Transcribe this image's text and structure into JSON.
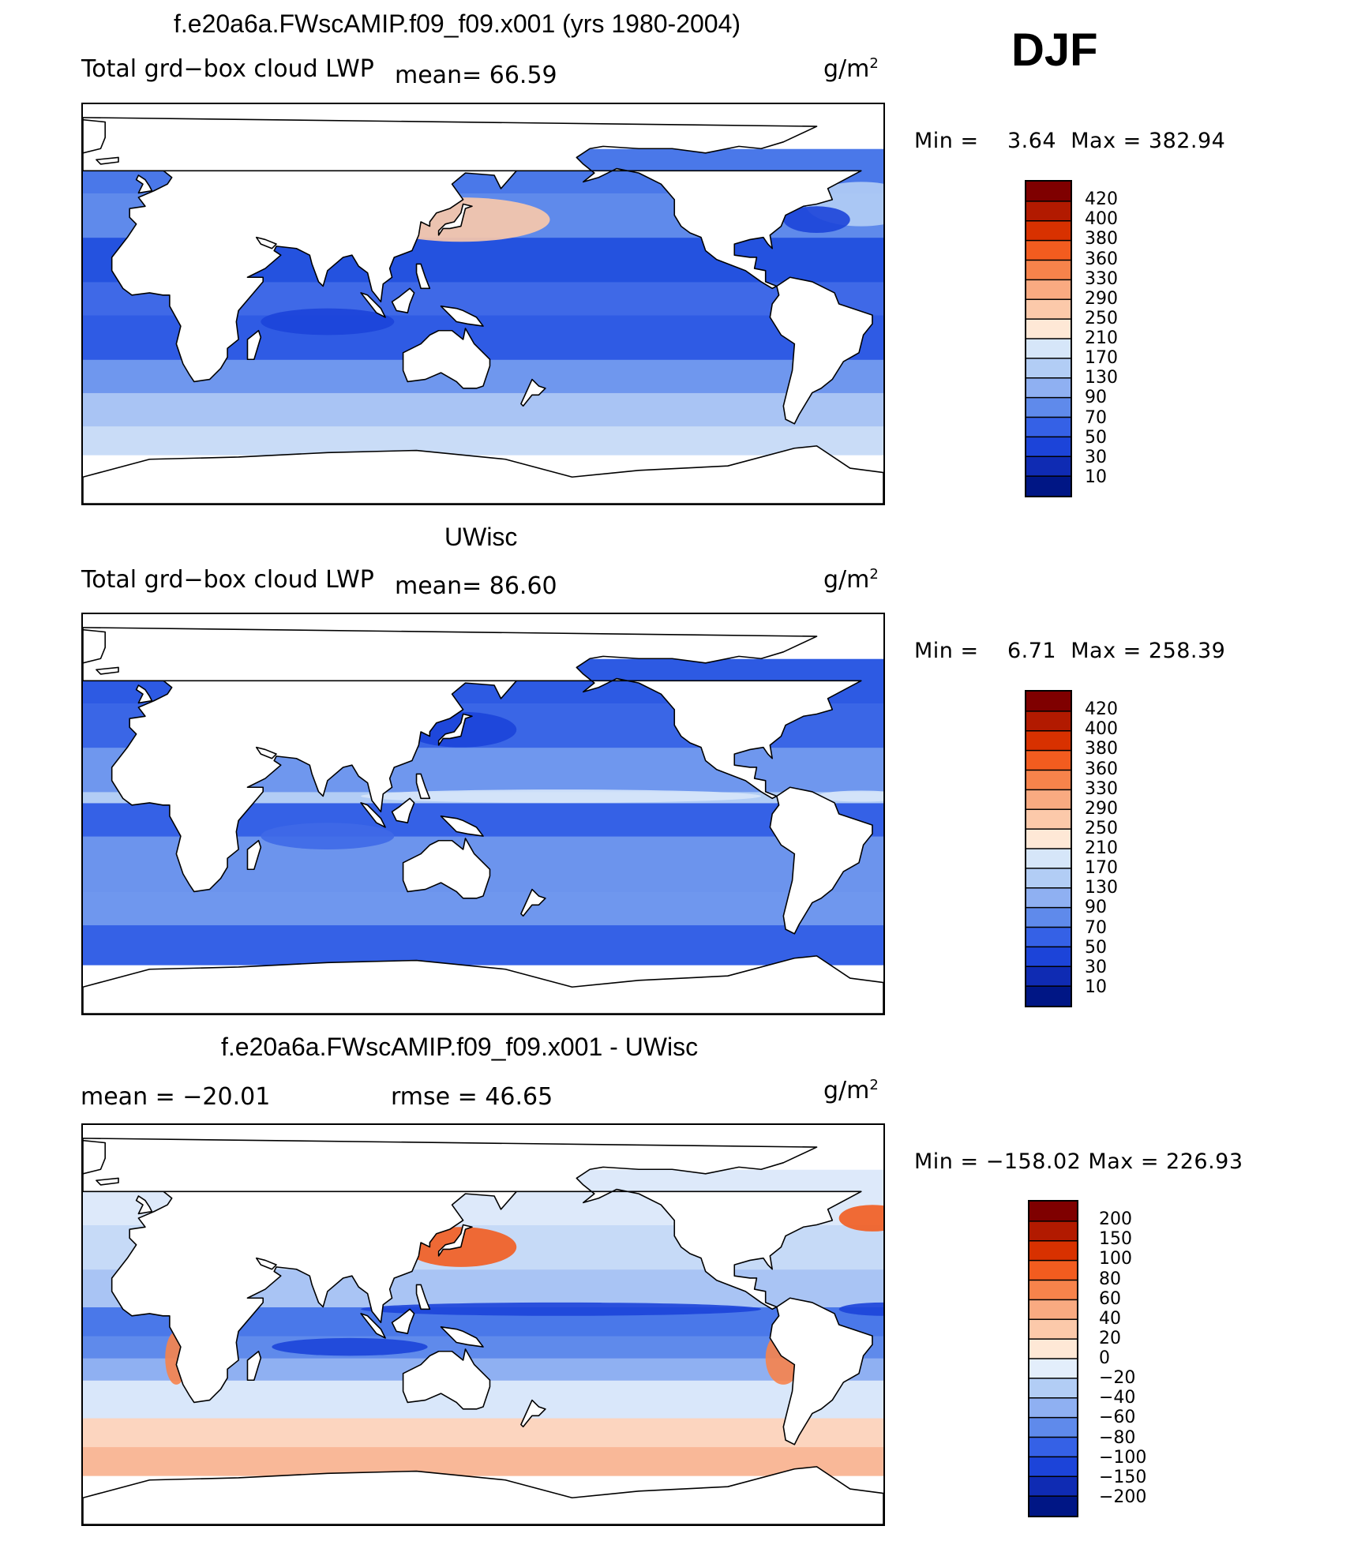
{
  "season": "DJF",
  "panels": [
    {
      "id": "model",
      "title": "f.e20a6a.FWscAMIP.f09_f09.x001 (yrs 1980-2004)",
      "variable": "Total grd−box cloud LWP",
      "stat_text": "mean=   66.59",
      "units": "g/m",
      "units_sup": "2",
      "min_label": "Min =",
      "min_value": "3.64",
      "max_label": "Max =",
      "max_value": "382.94",
      "palette": "abs",
      "colorbar_levels": [
        "420",
        "400",
        "380",
        "360",
        "330",
        "290",
        "250",
        "210",
        "170",
        "130",
        "90",
        "70",
        "50",
        "30",
        "10"
      ],
      "colorbar_colors": [
        "#7f0000",
        "#b21a00",
        "#d83100",
        "#f25c1f",
        "#f7834b",
        "#f9aa81",
        "#fcc9aa",
        "#fee8d6",
        "#d6e6f9",
        "#b2cdf5",
        "#8fb0f2",
        "#5f8aeb",
        "#3561e6",
        "#1c44d9",
        "#0f2bb3",
        "#001685"
      ]
    },
    {
      "id": "obs",
      "title": "UWisc",
      "variable": "Total grd−box cloud LWP",
      "stat_text": "mean=   86.60",
      "units": "g/m",
      "units_sup": "2",
      "min_label": "Min =",
      "min_value": "6.71",
      "max_label": "Max =",
      "max_value": "258.39",
      "palette": "abs",
      "colorbar_levels": [
        "420",
        "400",
        "380",
        "360",
        "330",
        "290",
        "250",
        "210",
        "170",
        "130",
        "90",
        "70",
        "50",
        "30",
        "10"
      ],
      "colorbar_colors": [
        "#7f0000",
        "#b21a00",
        "#d83100",
        "#f25c1f",
        "#f7834b",
        "#f9aa81",
        "#fcc9aa",
        "#fee8d6",
        "#d6e6f9",
        "#b2cdf5",
        "#8fb0f2",
        "#5f8aeb",
        "#3561e6",
        "#1c44d9",
        "#0f2bb3",
        "#001685"
      ]
    },
    {
      "id": "diff",
      "title": "f.e20a6a.FWscAMIP.f09_f09.x001 - UWisc",
      "variable": "",
      "stat_text": "mean = −20.01",
      "rmse_text": "rmse =   46.65",
      "units": "g/m",
      "units_sup": "2",
      "min_label": "Min =",
      "min_value": "−158.02",
      "max_label": "Max =",
      "max_value": "226.93",
      "palette": "diff",
      "colorbar_levels": [
        "200",
        "150",
        "100",
        "80",
        "60",
        "40",
        "20",
        "0",
        "−20",
        "−40",
        "−60",
        "−80",
        "−100",
        "−150",
        "−200"
      ],
      "colorbar_colors": [
        "#7f0000",
        "#b21a00",
        "#d83100",
        "#f25c1f",
        "#f7834b",
        "#f9aa81",
        "#fcc9aa",
        "#fee8d6",
        "#e3eefb",
        "#b2cdf5",
        "#8fb0f2",
        "#5f8aeb",
        "#3561e6",
        "#1c44d9",
        "#0f2bb3",
        "#001685"
      ]
    }
  ]
}
